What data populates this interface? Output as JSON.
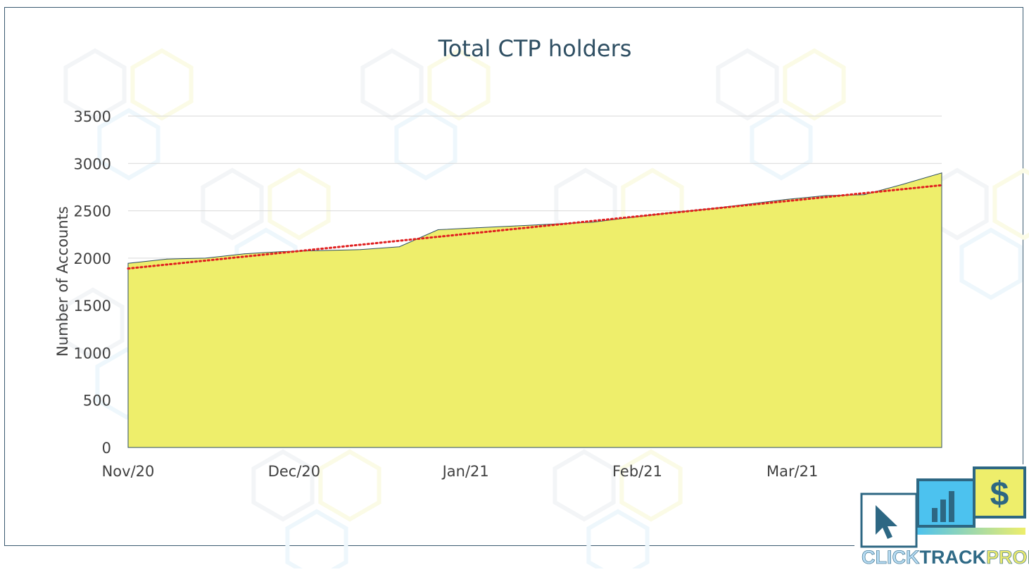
{
  "chart_data": {
    "type": "area",
    "title": "Total CTP holders",
    "xlabel": "",
    "ylabel": "Number of Accounts",
    "x_tick_labels": [
      "Nov/20",
      "Dec/20",
      "Jan/21",
      "Feb/21",
      "Mar/21"
    ],
    "x_tick_dates": [
      "2020-11-01",
      "2020-12-01",
      "2021-01-01",
      "2021-02-01",
      "2021-03-01"
    ],
    "y_ticks": [
      0,
      500,
      1000,
      1500,
      2000,
      2500,
      3000,
      3500
    ],
    "ylim": [
      0,
      3500
    ],
    "grid": "horizontal",
    "series": [
      {
        "dates": [
          "2020-11-01",
          "2020-11-08",
          "2020-11-15",
          "2020-11-22",
          "2020-11-29",
          "2020-12-06",
          "2020-12-13",
          "2020-12-20",
          "2020-12-27",
          "2021-01-03",
          "2021-01-10",
          "2021-01-17",
          "2021-01-24",
          "2021-01-31",
          "2021-02-07",
          "2021-02-14",
          "2021-02-21",
          "2021-02-28",
          "2021-03-07",
          "2021-03-14",
          "2021-03-21",
          "2021-03-28"
        ],
        "values": [
          1945,
          1990,
          2000,
          2045,
          2070,
          2080,
          2090,
          2120,
          2300,
          2320,
          2340,
          2360,
          2380,
          2430,
          2480,
          2520,
          2570,
          2620,
          2660,
          2670,
          2780,
          2900
        ],
        "color": "#eeee6b"
      }
    ],
    "trendline": {
      "type": "linear",
      "start": [
        "2020-11-01",
        1890
      ],
      "end": [
        "2021-03-28",
        2770
      ],
      "color": "#e02020",
      "style": "dotted"
    }
  },
  "logo": {
    "text_click": "CLICK",
    "text_track": "TRACK",
    "text_profit": "PROFIT",
    "icons": [
      "cursor-icon",
      "bar-chart-icon",
      "dollar-icon"
    ],
    "colors": {
      "click": "#b7dbf2",
      "track": "#2f6a86",
      "profit": "#e8e870",
      "teal": "#2d6783",
      "blue": "#4cc2ef",
      "yellow": "#eeee6b"
    },
    "dollar_glyph": "$"
  }
}
